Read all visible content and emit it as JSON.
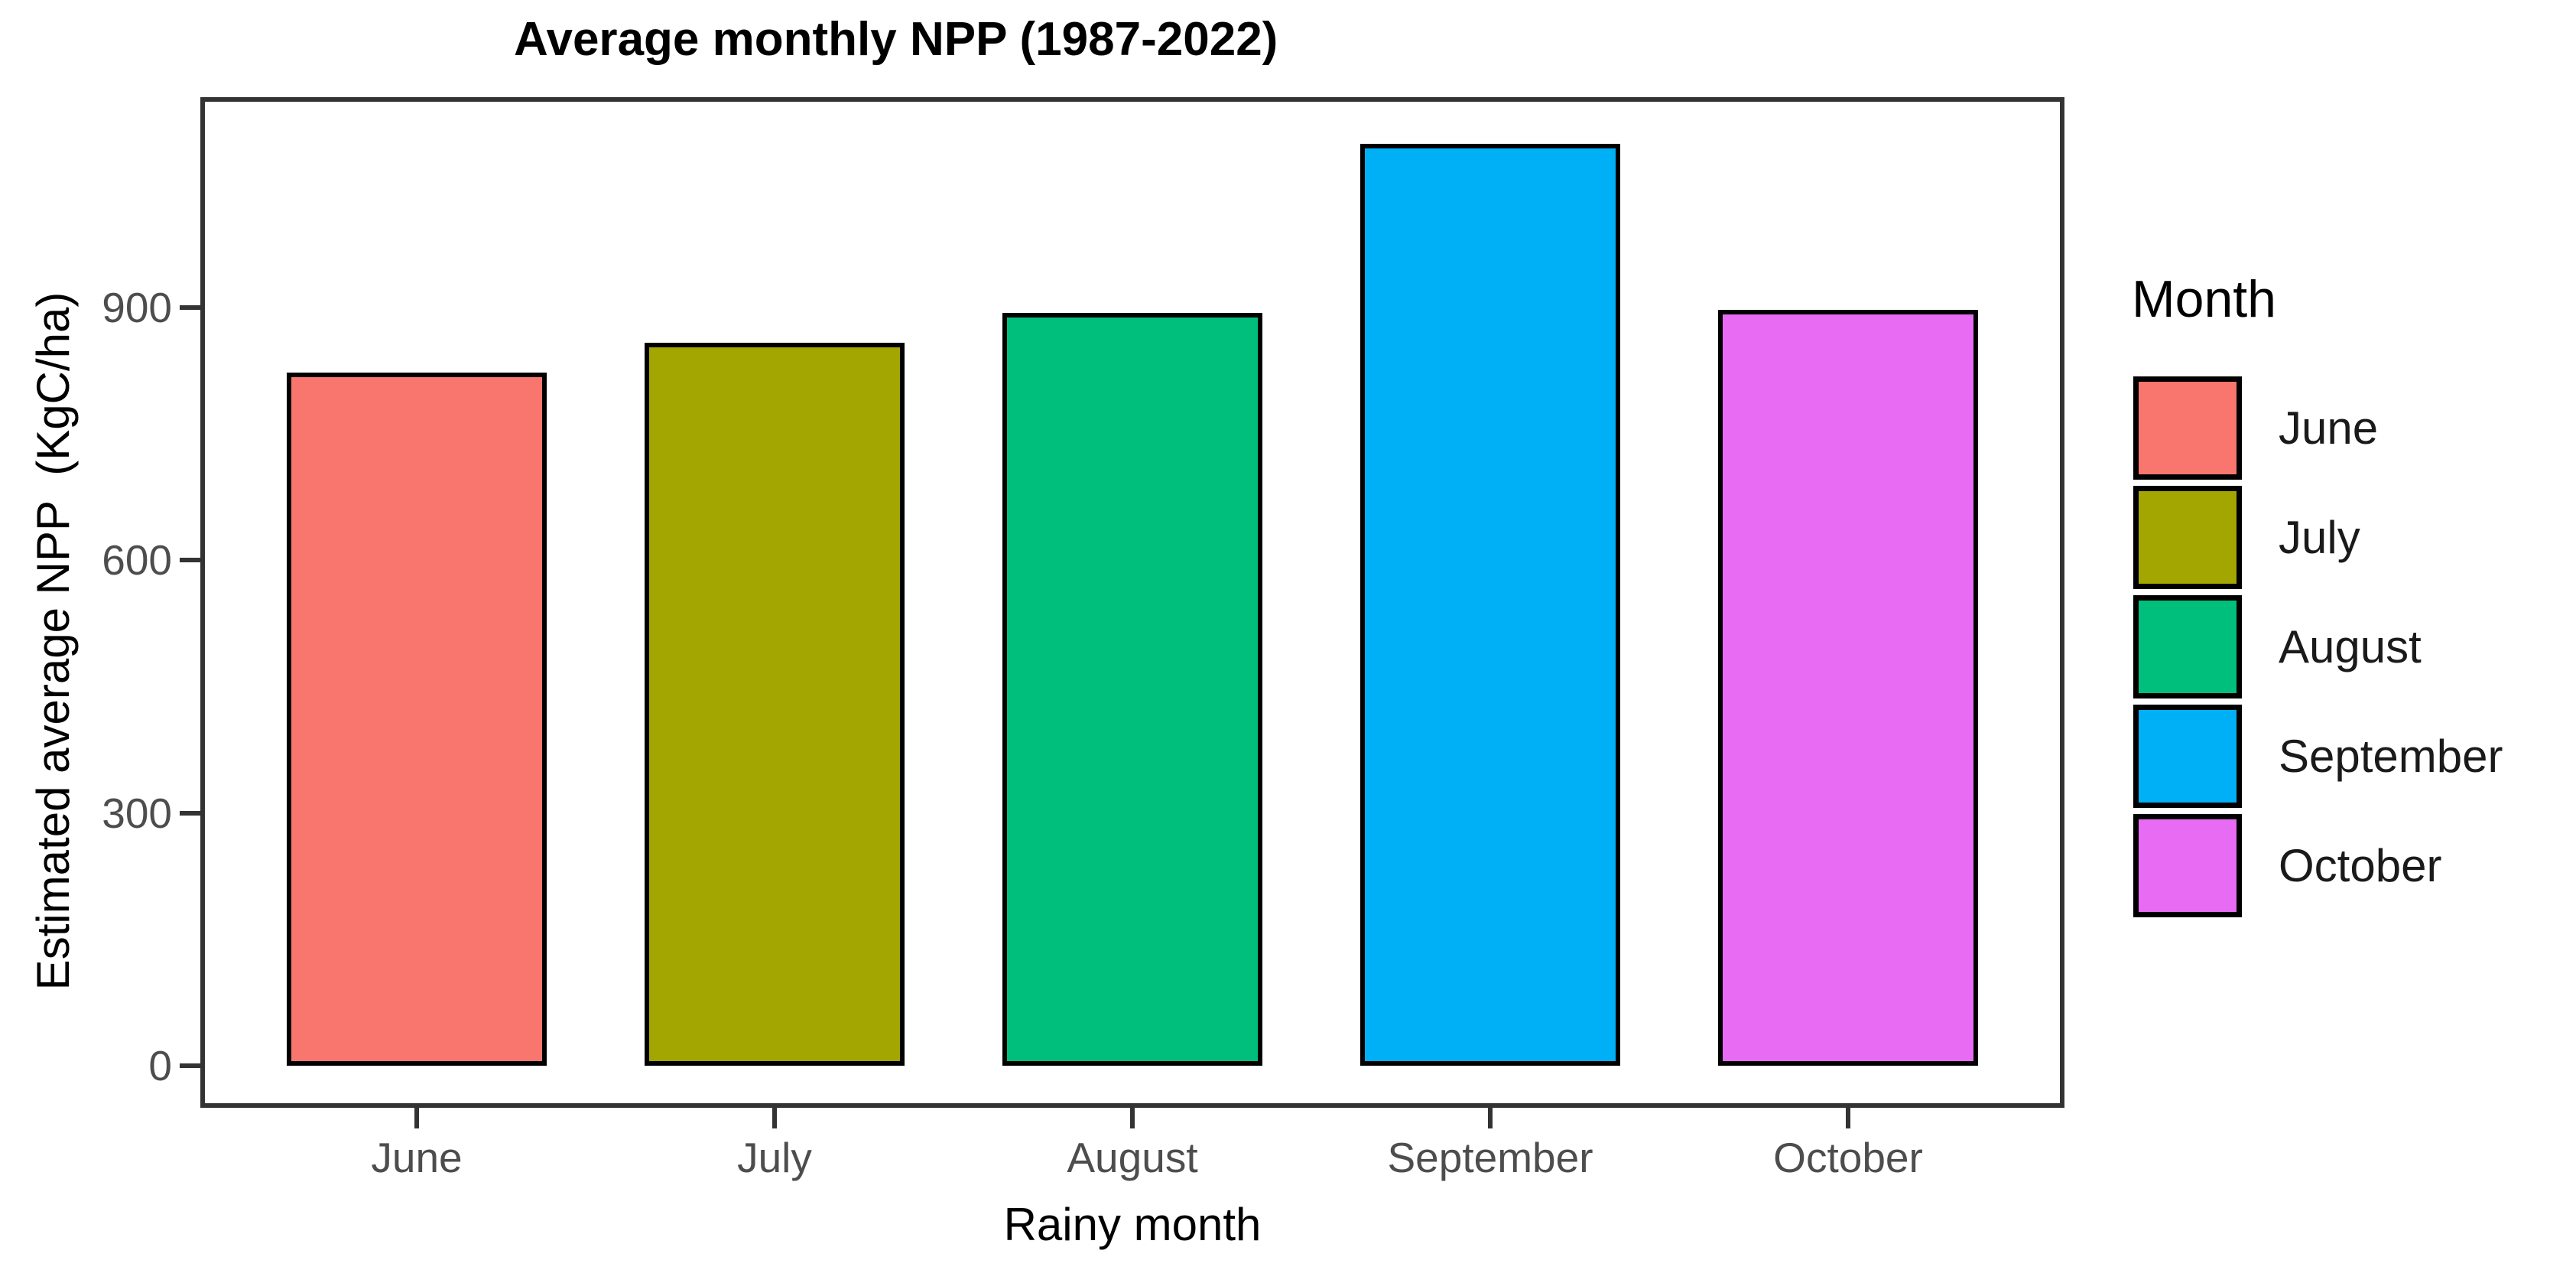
{
  "chart_data": {
    "type": "bar",
    "title": "Average monthly NPP (1987-2022)",
    "xlabel": "Rainy month",
    "ylabel": "Estimated average NPP  (KgC/ha)",
    "categories": [
      "June",
      "July",
      "August",
      "September",
      "October"
    ],
    "values": [
      823,
      858,
      894,
      1094,
      897
    ],
    "bar_colors": [
      "#F8766D",
      "#A3A500",
      "#00BF7D",
      "#00B0F6",
      "#E76BF3"
    ],
    "bar_border_color": "#000000",
    "yticks": [
      0,
      300,
      600,
      900
    ],
    "ylim": [
      0,
      1150
    ],
    "grid": false,
    "panel_background": "#FFFFFF",
    "panel_border_color": "#333333",
    "axis_text_color": "#4D4D4D",
    "legend": {
      "title": "Month",
      "position": "right",
      "entries": [
        {
          "label": "June",
          "color": "#F8766D"
        },
        {
          "label": "July",
          "color": "#A3A500"
        },
        {
          "label": "August",
          "color": "#00BF7D"
        },
        {
          "label": "September",
          "color": "#00B0F6"
        },
        {
          "label": "October",
          "color": "#E76BF3"
        }
      ]
    }
  }
}
